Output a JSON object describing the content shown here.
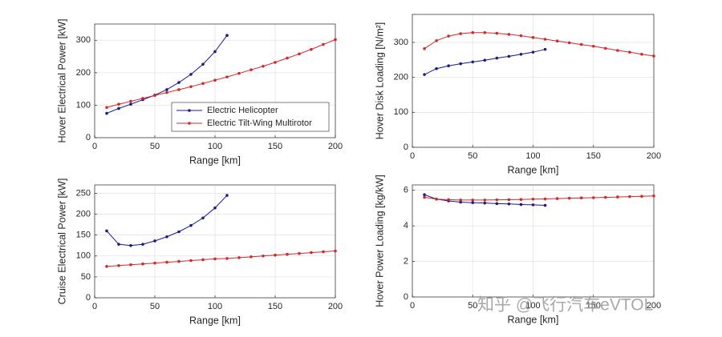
{
  "chart_data": [
    {
      "type": "line",
      "ylabel": "Hover Electrical Power [kW]",
      "xlabel": "Range [km]",
      "xlim": [
        0,
        200
      ],
      "xticks": [
        0,
        50,
        100,
        150,
        200
      ],
      "ylim": [
        0,
        350
      ],
      "yticks": [
        0,
        100,
        200,
        300
      ],
      "grid": true,
      "legend": "southeast",
      "series": [
        {
          "name": "Electric Helicopter",
          "color": "#1a1a8c",
          "x": [
            10,
            20,
            30,
            40,
            50,
            60,
            70,
            80,
            90,
            100,
            110
          ],
          "values": [
            75,
            90,
            103,
            117,
            131,
            148,
            170,
            195,
            226,
            265,
            315
          ]
        },
        {
          "name": "Electric Tilt-Wing Multirotor",
          "color": "#d62728",
          "x": [
            10,
            20,
            30,
            40,
            50,
            60,
            70,
            80,
            90,
            100,
            110,
            120,
            130,
            140,
            150,
            160,
            170,
            180,
            190,
            200
          ],
          "values": [
            93,
            103,
            112,
            121,
            130,
            139,
            148,
            157,
            167,
            177,
            187,
            198,
            209,
            220,
            232,
            245,
            258,
            272,
            287,
            302
          ]
        }
      ]
    },
    {
      "type": "line",
      "ylabel": "Hover Disk Loading [N/m²]",
      "xlabel": "Range [km]",
      "xlim": [
        0,
        200
      ],
      "xticks": [
        0,
        50,
        100,
        150,
        200
      ],
      "ylim": [
        0,
        380
      ],
      "yticks": [
        0,
        100,
        200,
        300
      ],
      "grid": true,
      "series": [
        {
          "color": "#1a1a8c",
          "x": [
            10,
            20,
            30,
            40,
            50,
            60,
            70,
            80,
            90,
            100,
            110
          ],
          "values": [
            208,
            225,
            233,
            239,
            244,
            249,
            255,
            260,
            266,
            272,
            280
          ]
        },
        {
          "color": "#d62728",
          "x": [
            10,
            20,
            30,
            40,
            50,
            60,
            70,
            80,
            90,
            100,
            110,
            120,
            130,
            140,
            150,
            160,
            170,
            180,
            190,
            200
          ],
          "values": [
            282,
            305,
            318,
            325,
            328,
            328,
            326,
            323,
            319,
            314,
            309,
            304,
            299,
            294,
            289,
            283,
            277,
            272,
            266,
            261
          ]
        }
      ]
    },
    {
      "type": "line",
      "ylabel": "Cruise Electrical Power [kW]",
      "xlabel": "Range [km]",
      "xlim": [
        0,
        200
      ],
      "xticks": [
        0,
        50,
        100,
        150,
        200
      ],
      "ylim": [
        0,
        270
      ],
      "yticks": [
        0,
        50,
        100,
        150,
        200,
        250
      ],
      "grid": true,
      "series": [
        {
          "color": "#1a1a8c",
          "x": [
            10,
            20,
            30,
            40,
            50,
            60,
            70,
            80,
            90,
            100,
            110
          ],
          "values": [
            160,
            128,
            125,
            128,
            136,
            146,
            158,
            173,
            191,
            215,
            245
          ]
        },
        {
          "color": "#d62728",
          "x": [
            10,
            20,
            30,
            40,
            50,
            60,
            70,
            80,
            90,
            100,
            110,
            120,
            130,
            140,
            150,
            160,
            170,
            180,
            190,
            200
          ],
          "values": [
            75,
            77,
            79,
            81,
            83,
            85,
            87,
            89,
            91,
            93,
            94,
            96,
            98,
            100,
            102,
            104,
            106,
            108,
            110,
            112
          ]
        }
      ]
    },
    {
      "type": "line",
      "ylabel": "Hover Power Loading [kg/kW]",
      "xlabel": "Range [km]",
      "xlim": [
        0,
        200
      ],
      "xticks": [
        0,
        50,
        100,
        150,
        200
      ],
      "ylim": [
        0,
        6.3
      ],
      "yticks": [
        0,
        2,
        4,
        6
      ],
      "grid": true,
      "series": [
        {
          "color": "#1a1a8c",
          "x": [
            10,
            20,
            30,
            40,
            50,
            60,
            70,
            80,
            90,
            100,
            110
          ],
          "values": [
            5.75,
            5.5,
            5.4,
            5.33,
            5.3,
            5.28,
            5.25,
            5.23,
            5.2,
            5.18,
            5.15
          ]
        },
        {
          "color": "#d62728",
          "x": [
            10,
            20,
            30,
            40,
            50,
            60,
            70,
            80,
            90,
            100,
            110,
            120,
            130,
            140,
            150,
            160,
            170,
            180,
            190,
            200
          ],
          "values": [
            5.6,
            5.5,
            5.47,
            5.45,
            5.45,
            5.45,
            5.46,
            5.47,
            5.48,
            5.5,
            5.51,
            5.53,
            5.55,
            5.57,
            5.58,
            5.6,
            5.62,
            5.64,
            5.66,
            5.68
          ]
        }
      ]
    }
  ],
  "watermark": "知乎 @飞行汽车eVTOL"
}
